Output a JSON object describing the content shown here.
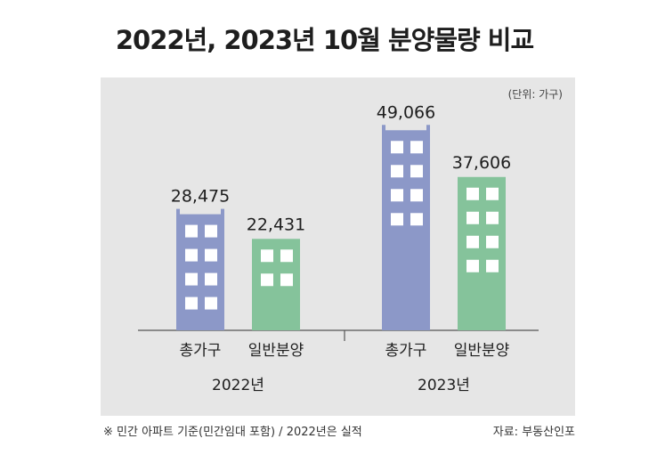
{
  "title": "2022년, 2023년 10월 분양물량 비교",
  "unit_label": "(단위: 가구)",
  "footnote": "※ 민간 아파트 기준(민간임대 포함) / 2022년은 실적",
  "source": "자료: 부동산인포",
  "colors": {
    "total": "#8c98c8",
    "general": "#85c39b",
    "window": "#ffffff",
    "panel": "#e6e6e6"
  },
  "chart_data": {
    "type": "bar",
    "groups": [
      "2022년",
      "2023년"
    ],
    "categories": [
      "총가구",
      "일반분양"
    ],
    "series": [
      {
        "group": "2022년",
        "values": [
          28475,
          22431
        ],
        "labels": [
          "28,475",
          "22,431"
        ]
      },
      {
        "group": "2023년",
        "values": [
          49066,
          37606
        ],
        "labels": [
          "49,066",
          "37,606"
        ]
      }
    ],
    "ylim": [
      0,
      50000
    ],
    "grid": false
  }
}
